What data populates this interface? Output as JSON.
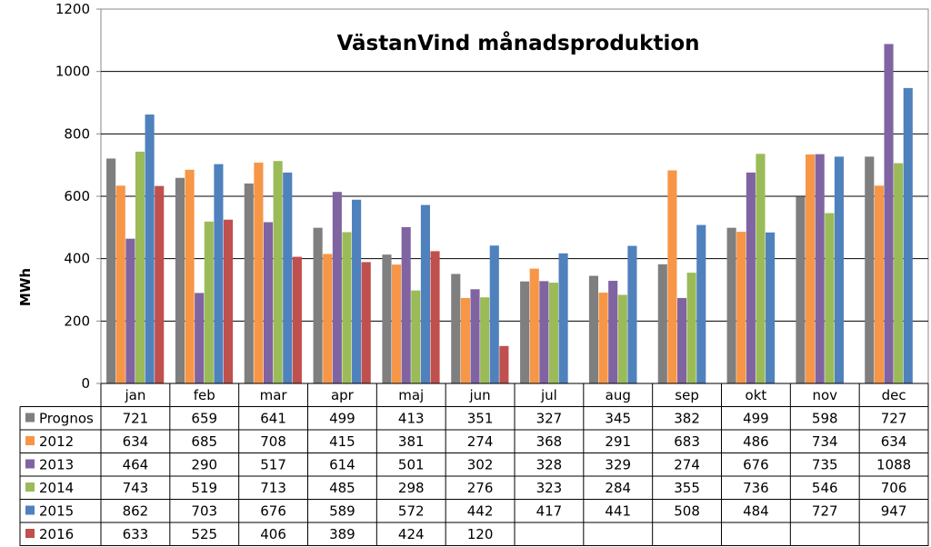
{
  "chart_data": {
    "type": "bar",
    "title": "VästanVind månadsproduktion",
    "xlabel": "",
    "ylabel": "MWh",
    "ylim": [
      0,
      1200
    ],
    "yticks": [
      "0",
      "200",
      "400",
      "600",
      "800",
      "1000",
      "1200"
    ],
    "grid": true,
    "legend": "data-table",
    "categories": [
      "jan",
      "feb",
      "mar",
      "apr",
      "maj",
      "jun",
      "jul",
      "aug",
      "sep",
      "okt",
      "nov",
      "dec"
    ],
    "series": [
      {
        "name": "Prognos",
        "color": "#7f7f7f",
        "values": [
          721,
          659,
          641,
          499,
          413,
          351,
          327,
          345,
          382,
          499,
          598,
          727
        ]
      },
      {
        "name": "2012",
        "color": "#f79646",
        "values": [
          634,
          685,
          708,
          415,
          381,
          274,
          368,
          291,
          683,
          486,
          734,
          634
        ]
      },
      {
        "name": "2013",
        "color": "#8064a2",
        "values": [
          464,
          290,
          517,
          614,
          501,
          302,
          328,
          329,
          274,
          676,
          735,
          1088
        ]
      },
      {
        "name": "2014",
        "color": "#9bbb59",
        "values": [
          743,
          519,
          713,
          485,
          298,
          276,
          323,
          284,
          355,
          736,
          546,
          706
        ]
      },
      {
        "name": "2015",
        "color": "#4f81bd",
        "values": [
          862,
          703,
          676,
          589,
          572,
          442,
          417,
          441,
          508,
          484,
          727,
          947
        ]
      },
      {
        "name": "2016",
        "color": "#c0504d",
        "values": [
          633,
          525,
          406,
          389,
          424,
          120,
          null,
          null,
          null,
          null,
          null,
          null
        ]
      }
    ]
  }
}
